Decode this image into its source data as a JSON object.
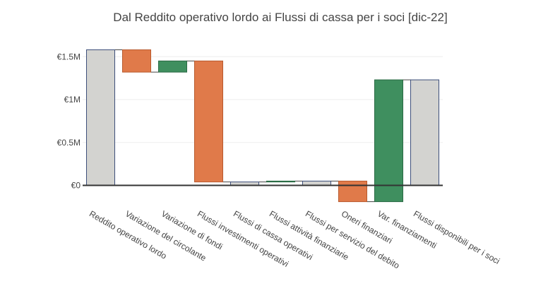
{
  "chart_data": {
    "type": "waterfall",
    "title": "Dal Reddito operativo lordo ai Flussi di cassa per i soci [dic-22]",
    "xlabel": "",
    "ylabel": "",
    "ylim": [
      -250000,
      1700000
    ],
    "yticks": [
      {
        "value": 0,
        "label": "€0"
      },
      {
        "value": 500000,
        "label": "€0.5M"
      },
      {
        "value": 1000000,
        "label": "€1M"
      },
      {
        "value": 1500000,
        "label": "€1.5M"
      }
    ],
    "grid": true,
    "steps": [
      {
        "label": "Reddito operativo lordo",
        "kind": "total",
        "value": 1580000
      },
      {
        "label": "Variazione del circolante",
        "kind": "delta",
        "value": -260000
      },
      {
        "label": "Variazione di fondi",
        "kind": "delta",
        "value": 130000
      },
      {
        "label": "Flussi investimenti operativi",
        "kind": "delta",
        "value": -1410000
      },
      {
        "label": "Flussi di cassa operativi",
        "kind": "subtotal",
        "value": 40000
      },
      {
        "label": "Flussi attività finanziarie",
        "kind": "delta",
        "value": 10000
      },
      {
        "label": "Flussi per servizio del debito",
        "kind": "subtotal",
        "value": 50000
      },
      {
        "label": "Oneri finanziari",
        "kind": "delta",
        "value": -240000
      },
      {
        "label": "Var. finanziamenti",
        "kind": "delta",
        "value": 1420000
      },
      {
        "label": "Flussi disponibili per i soci",
        "kind": "total",
        "value": 1230000
      }
    ],
    "colors": {
      "increase": "#3f8f5f",
      "decrease": "#e07a4a",
      "total": "#d3d3d0",
      "total_border": "#3d4f7a",
      "increase_border": "#2a6a44",
      "decrease_border": "#b85a2e",
      "connector": "#444444",
      "zero_line": "#333333",
      "grid": "#eeeeee",
      "text": "#444444"
    }
  }
}
